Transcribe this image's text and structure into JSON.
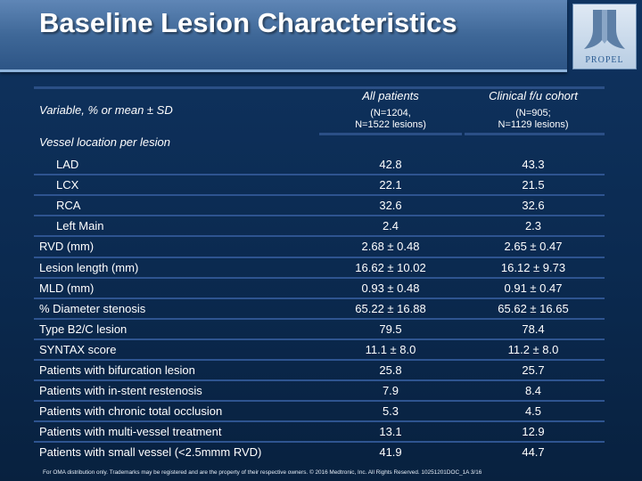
{
  "slide": {
    "title": "Baseline Lesion Characteristics",
    "logo_text": "PROPEL"
  },
  "table": {
    "variable_header": "Variable, % or mean ± SD",
    "columns": [
      {
        "title": "All patients",
        "subtitle": "(N=1204,\nN=1522 lesions)"
      },
      {
        "title": "Clinical f/u cohort",
        "subtitle": "(N=905;\nN=1129 lesions)"
      }
    ],
    "section_label": "Vessel location per lesion",
    "rows": [
      {
        "label": "LAD",
        "all": "42.8",
        "clinical": "43.3"
      },
      {
        "label": "LCX",
        "all": "22.1",
        "clinical": "21.5"
      },
      {
        "label": "RCA",
        "all": "32.6",
        "clinical": "32.6"
      },
      {
        "label": "Left Main",
        "all": "2.4",
        "clinical": "2.3"
      },
      {
        "label": "RVD (mm)",
        "all": "2.68 ± 0.48",
        "clinical": "2.65 ± 0.47"
      },
      {
        "label": "Lesion length (mm)",
        "all": "16.62 ± 10.02",
        "clinical": "16.12 ± 9.73"
      },
      {
        "label": "MLD (mm)",
        "all": "0.93 ± 0.48",
        "clinical": "0.91 ± 0.47"
      },
      {
        "label": "% Diameter stenosis",
        "all": "65.22 ± 16.88",
        "clinical": "65.62 ± 16.65"
      },
      {
        "label": "Type B2/C lesion",
        "all": "79.5",
        "clinical": "78.4"
      },
      {
        "label": "SYNTAX score",
        "all": "11.1 ± 8.0",
        "clinical": "11.2 ± 8.0"
      },
      {
        "label": "Patients with bifurcation lesion",
        "all": "25.8",
        "clinical": "25.7"
      },
      {
        "label": "Patients with in-stent restenosis",
        "all": "7.9",
        "clinical": "8.4"
      },
      {
        "label": "Patients with chronic total occlusion",
        "all": "5.3",
        "clinical": "4.5"
      },
      {
        "label": "Patients with multi-vessel treatment",
        "all": "13.1",
        "clinical": "12.9"
      },
      {
        "label": "Patients with small vessel (<2.5mmm RVD)",
        "all": "41.9",
        "clinical": "44.7"
      }
    ]
  },
  "footer": {
    "text": "For OMA distribution only. Trademarks may be registered and are the property of their respective owners. © 2016 Medtronic, Inc. All Rights Reserved. 10251201DOC_1A 3/16"
  }
}
